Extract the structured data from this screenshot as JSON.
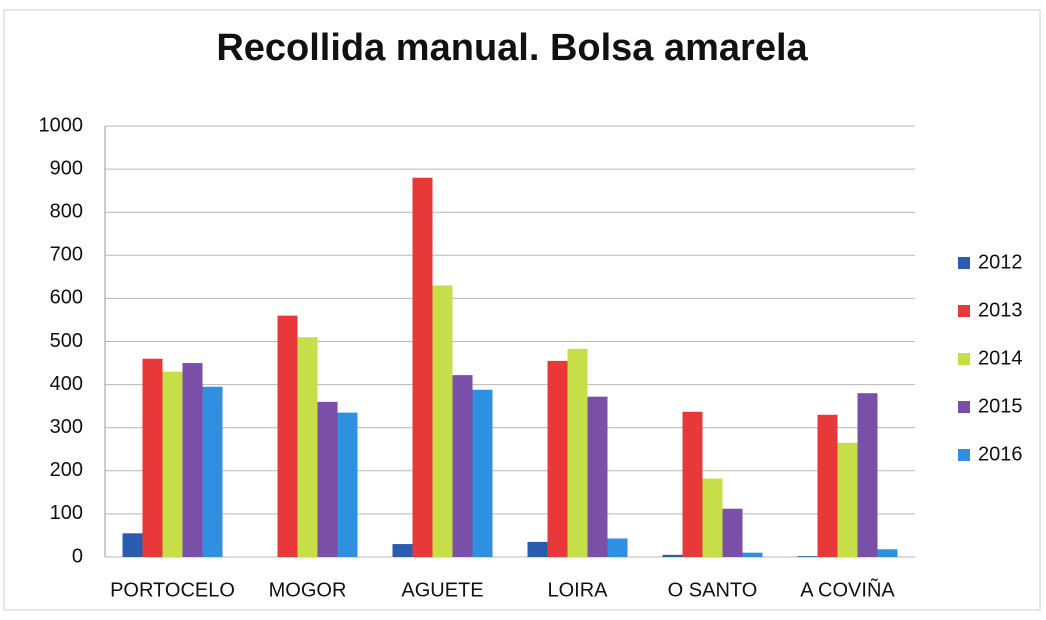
{
  "chart_data": {
    "type": "bar",
    "title": "Recollida manual. Bolsa amarela",
    "categories": [
      "PORTOCELO",
      "MOGOR",
      "AGUETE",
      "LOIRA",
      "O SANTO",
      "A COVIÑA"
    ],
    "series": [
      {
        "name": "2012",
        "color": "#2a5db0",
        "values": [
          55,
          0,
          30,
          35,
          5,
          2
        ]
      },
      {
        "name": "2013",
        "color": "#e8383a",
        "values": [
          460,
          560,
          880,
          455,
          337,
          330
        ]
      },
      {
        "name": "2014",
        "color": "#c6df48",
        "values": [
          430,
          510,
          630,
          483,
          182,
          265
        ]
      },
      {
        "name": "2015",
        "color": "#7a4fa8",
        "values": [
          450,
          360,
          422,
          372,
          112,
          380
        ]
      },
      {
        "name": "2016",
        "color": "#2f8fe0",
        "values": [
          395,
          335,
          388,
          43,
          10,
          18
        ]
      }
    ],
    "ylim": [
      0,
      1000
    ],
    "yticks": [
      0,
      100,
      200,
      300,
      400,
      500,
      600,
      700,
      800,
      900,
      1000
    ],
    "grid": true,
    "legend": "right"
  }
}
